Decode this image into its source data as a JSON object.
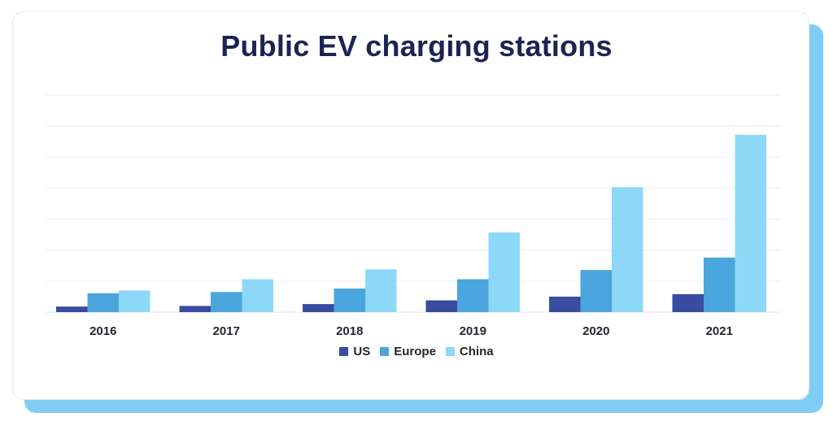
{
  "chart_data": {
    "type": "bar",
    "title": "Public EV charging stations",
    "xlabel": "",
    "ylabel": "",
    "ylim": [
      0,
      70
    ],
    "grid": true,
    "legend_position": "bottom",
    "categories": [
      "2016",
      "2017",
      "2018",
      "2019",
      "2020",
      "2021"
    ],
    "series": [
      {
        "name": "US",
        "color": "#3a4c9f",
        "values": [
          1.8,
          2.0,
          2.6,
          3.8,
          5.0,
          5.8
        ]
      },
      {
        "name": "Europe",
        "color": "#4aa6dc",
        "values": [
          6.1,
          6.5,
          7.6,
          10.6,
          13.6,
          17.6
        ]
      },
      {
        "name": "China",
        "color": "#8dd8f6",
        "values": [
          7.0,
          10.6,
          13.8,
          25.7,
          40.3,
          57.2
        ]
      }
    ]
  }
}
